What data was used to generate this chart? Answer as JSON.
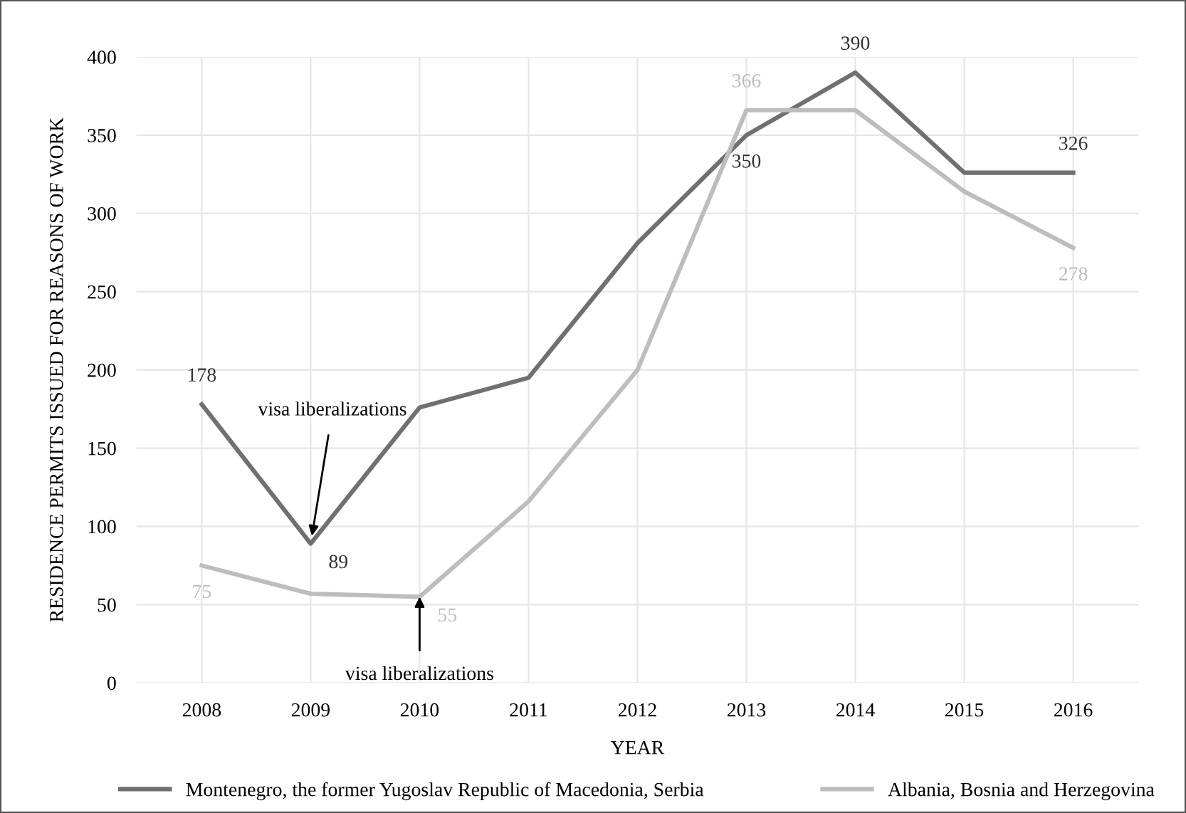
{
  "chart_data": {
    "type": "line",
    "xlabel": "YEAR",
    "ylabel": "RESIDENCE PERMITS ISSUED FOR REASONS OF WORK",
    "categories": [
      "2008",
      "2009",
      "2010",
      "2011",
      "2012",
      "2013",
      "2014",
      "2015",
      "2016"
    ],
    "series": [
      {
        "name": "Montenegro, the former Yugoslav Republic of Macedonia, Serbia",
        "color": "#707070",
        "values": [
          178,
          89,
          176,
          195,
          281,
          350,
          390,
          326,
          326
        ],
        "value_labels": [
          "178",
          "89",
          null,
          null,
          null,
          "350",
          "390",
          null,
          "326"
        ]
      },
      {
        "name": "Albania, Bosnia and Herzegovina",
        "color": "#bdbdbd",
        "values": [
          75,
          57,
          55,
          116,
          200,
          366,
          366,
          314,
          278
        ],
        "value_labels": [
          "75",
          null,
          "55",
          null,
          null,
          "366",
          null,
          null,
          "278"
        ]
      }
    ],
    "annotations": [
      {
        "text": "visa liberalizations",
        "x": "2009",
        "y": 89
      },
      {
        "text": "visa liberalizations",
        "x": "2010",
        "y": 55
      }
    ],
    "ylim": [
      0,
      400
    ],
    "yticks": [
      0,
      50,
      100,
      150,
      200,
      250,
      300,
      350,
      400
    ],
    "grid": true,
    "legend": "bottom",
    "marker": "none",
    "line_style": "solid"
  }
}
